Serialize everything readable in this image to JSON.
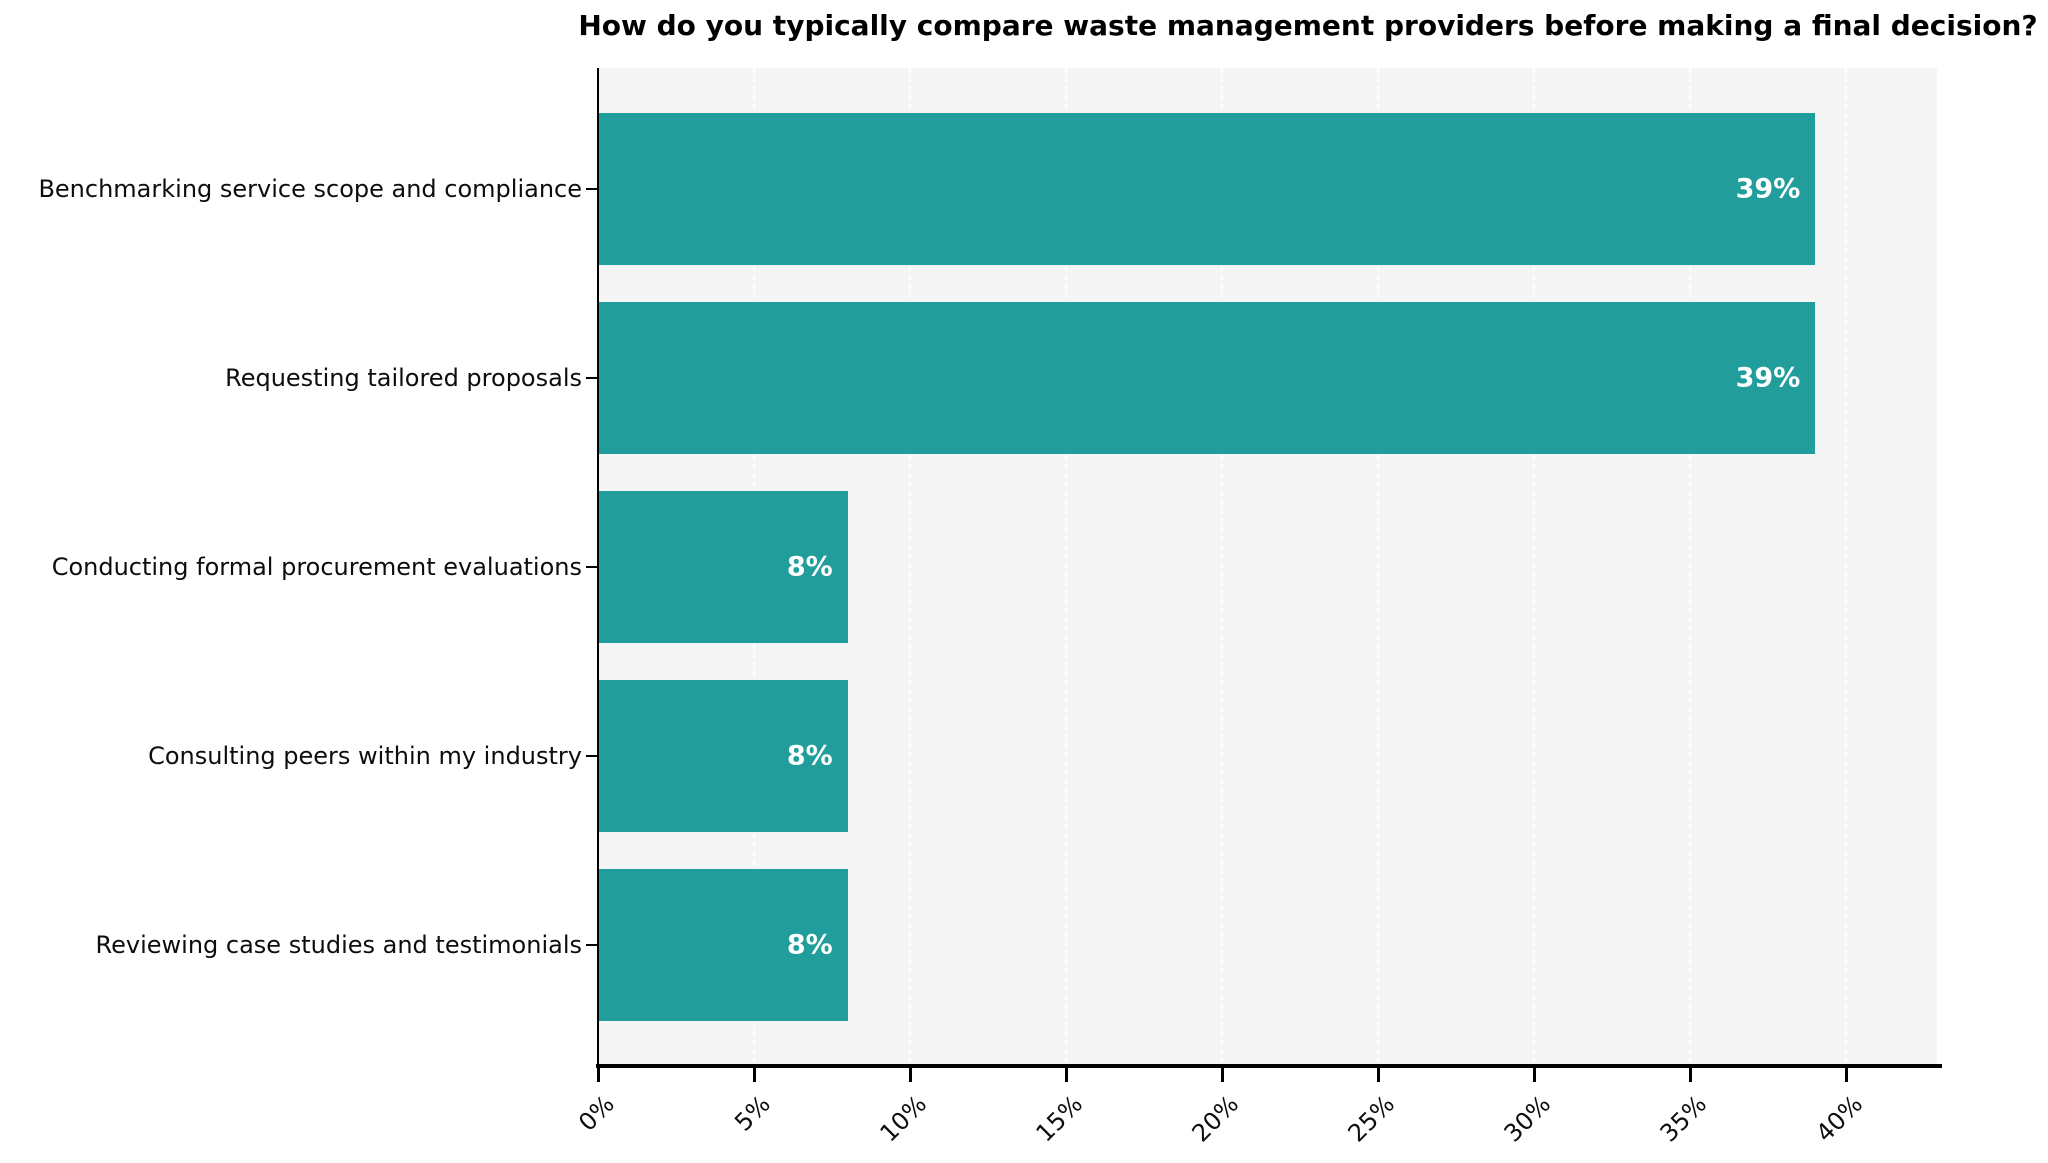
{
  "chart_data": {
    "type": "bar",
    "orientation": "horizontal",
    "title": "How do you typically compare waste management providers before making a final decision?",
    "categories": [
      "Benchmarking service scope and compliance",
      "Requesting tailored proposals",
      "Conducting formal procurement evaluations",
      "Consulting peers within my industry",
      "Reviewing case studies and testimonials"
    ],
    "values": [
      39,
      39,
      8,
      8,
      8
    ],
    "value_labels": [
      "39%",
      "39%",
      "8%",
      "8%",
      "8%"
    ],
    "xlabel": "",
    "ylabel": "",
    "xlim": [
      0,
      42.9
    ],
    "x_tick_values": [
      0,
      5,
      10,
      15,
      20,
      25,
      30,
      35,
      40
    ],
    "x_tick_labels": [
      "0%",
      "5%",
      "10%",
      "15%",
      "20%",
      "25%",
      "30%",
      "35%",
      "40%"
    ],
    "grid": "vertical-dashed-white",
    "legend_position": "none",
    "bar_color": "#219e9c",
    "plot_background": "#f5f5f5",
    "value_label_color": "#ffffff",
    "axis_color": "#000000"
  }
}
